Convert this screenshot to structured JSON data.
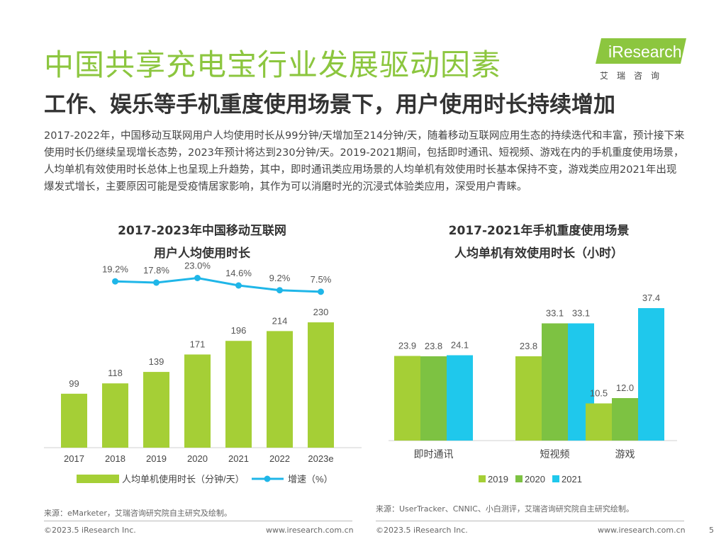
{
  "header": {
    "title": "中国共享充电宝行业发展驱动因素",
    "subtitle": "工作、娱乐等手机重度使用场景下，用户使用时长持续增加",
    "logo_text": "iResearch",
    "logo_cn": "艾瑞咨询"
  },
  "intro": "2017-2022年，中国移动互联网用户人均使用时长从99分钟/天增加至214分钟/天，随着移动互联网应用生态的持续迭代和丰富，预计接下来使用时长仍继续呈现增长态势，2023年预计将达到230分钟/天。2019-2021期间，包括即时通讯、短视频、游戏在内的手机重度使用场景，人均单机有效使用时长总体上也呈现上升趋势，其中，即时通讯类应用场景的人均单机有效使用时长基本保持不变，游戏类应用2021年出现爆发式增长，主要原因可能是受疫情居家影响，其作为可以消磨时光的沉浸式体验类应用，深受用户青睐。",
  "colors": {
    "accent": "#8cc63f",
    "bar_2019": "#a5cf36",
    "bar_2020": "#7dc242",
    "bar_2021": "#1fc8ec",
    "line": "#1fb6e8"
  },
  "chart_data": [
    {
      "type": "bar+line",
      "title_line1": "2017-2023年中国移动互联网",
      "title_line2": "用户人均使用时长",
      "categories": [
        "2017",
        "2018",
        "2019",
        "2020",
        "2021",
        "2022",
        "2023e"
      ],
      "bar_series": {
        "name": "人均单机使用时长（分钟/天）",
        "values": [
          99,
          118,
          139,
          171,
          196,
          214,
          230
        ]
      },
      "line_series": {
        "name": "增速（%）",
        "values": [
          null,
          19.2,
          17.8,
          23.0,
          14.6,
          9.2,
          7.5
        ],
        "labels": [
          "",
          "19.2%",
          "17.8%",
          "23.0%",
          "14.6%",
          "9.2%",
          "7.5%"
        ]
      },
      "ylim": [
        0,
        260
      ],
      "source": "来源：eMarketer，艾瑞咨询研究院自主研究及绘制。"
    },
    {
      "type": "bar",
      "title_line1": "2017-2021年手机重度使用场景",
      "title_line2": "人均单机有效使用时长（小时）",
      "categories": [
        "即时通讯",
        "短视频",
        "游戏"
      ],
      "series": [
        {
          "name": "2019",
          "values": [
            23.9,
            23.8,
            10.5
          ],
          "labels": [
            "23.9",
            "23.8",
            "10.5"
          ]
        },
        {
          "name": "2020",
          "values": [
            23.8,
            33.1,
            12.0
          ],
          "labels": [
            "23.8",
            "33.1",
            "12.0"
          ]
        },
        {
          "name": "2021",
          "values": [
            24.1,
            33.1,
            37.4
          ],
          "labels": [
            "24.1",
            "33.1",
            "37.4"
          ]
        }
      ],
      "ylim": [
        0,
        45
      ],
      "source": "来源：UserTracker、CNNIC、小白测评，艾瑞咨询研究院自主研究绘制。"
    }
  ],
  "footer": {
    "copyright_left": "©2023.5 iResearch Inc.",
    "url_left": "www.iresearch.com.cn",
    "copyright_right": "©2023.5 iResearch Inc.",
    "url_right": "www.iresearch.com.cn",
    "page": "5"
  }
}
